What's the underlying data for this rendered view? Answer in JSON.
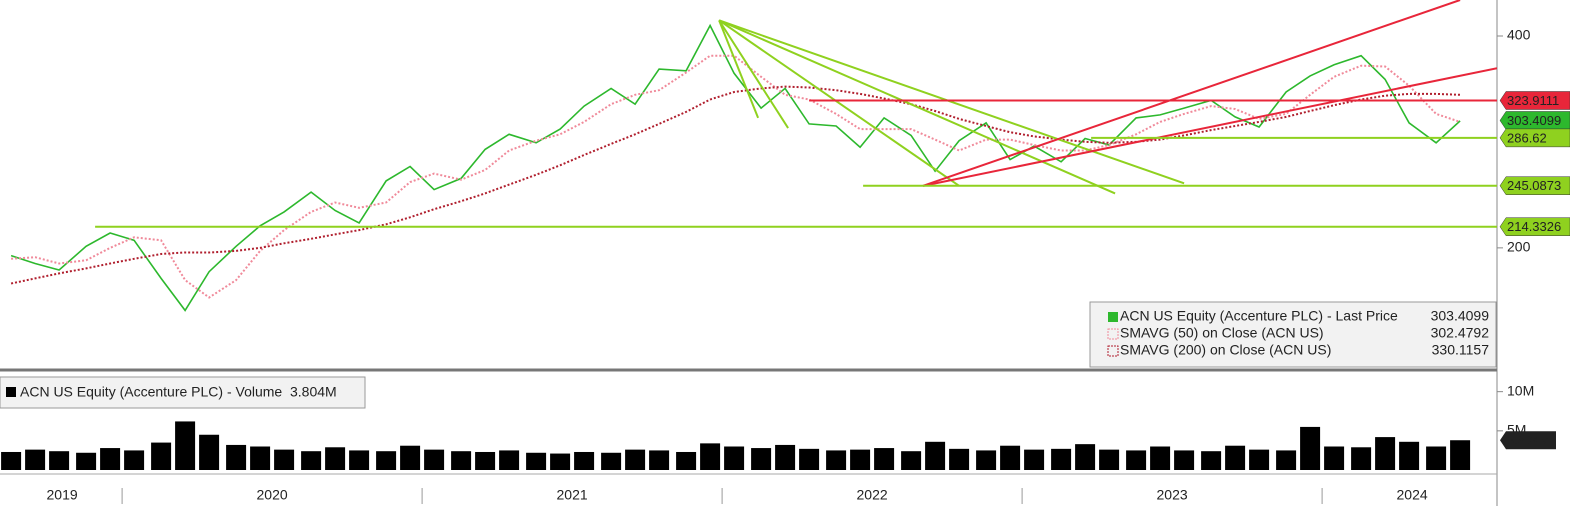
{
  "chart_data": [
    {
      "type": "line",
      "log_scale": true,
      "xlim": [
        2019.593,
        2024.583
      ],
      "ylim": [
        135,
        450
      ],
      "yticks": [
        200,
        400
      ],
      "x": [
        2019.63,
        2019.71,
        2019.79,
        2019.88,
        2019.96,
        2020.04,
        2020.13,
        2020.21,
        2020.29,
        2020.38,
        2020.46,
        2020.54,
        2020.63,
        2020.71,
        2020.79,
        2020.88,
        2020.96,
        2021.04,
        2021.13,
        2021.21,
        2021.29,
        2021.38,
        2021.46,
        2021.54,
        2021.63,
        2021.71,
        2021.79,
        2021.88,
        2021.96,
        2022.04,
        2022.13,
        2022.21,
        2022.29,
        2022.38,
        2022.46,
        2022.54,
        2022.63,
        2022.71,
        2022.79,
        2022.88,
        2022.96,
        2023.04,
        2023.13,
        2023.21,
        2023.29,
        2023.38,
        2023.46,
        2023.54,
        2023.63,
        2023.71,
        2023.79,
        2023.88,
        2023.96,
        2024.04,
        2024.13,
        2024.21,
        2024.29,
        2024.38,
        2024.46
      ],
      "series": [
        {
          "name": "ACN US Equity (Accenture PLC) - Last Price",
          "color": "#2db82d",
          "style": "solid",
          "last_value": 303.4099,
          "values": [
            195,
            190,
            186,
            201,
            210,
            205,
            181,
            163,
            185,
            201,
            215,
            225,
            240,
            226,
            217,
            249,
            261,
            242,
            251,
            276,
            290,
            282,
            295,
            318,
            337,
            320,
            359,
            357,
            414,
            354,
            316,
            337,
            300,
            298,
            278,
            306,
            289,
            257,
            284,
            301,
            267,
            279,
            265,
            286,
            280,
            306,
            309,
            316,
            324,
            307,
            297,
            333,
            351,
            364,
            375,
            347,
            301,
            282,
            303
          ]
        },
        {
          "name": "SMAVG (50)  on Close (ACN US)",
          "color": "#f08a9a",
          "style": "dotted",
          "last_value": 302.4792,
          "values": [
            193,
            194,
            190,
            192,
            200,
            207,
            205,
            180,
            170,
            180,
            198,
            212,
            225,
            232,
            228,
            232,
            248,
            255,
            250,
            258,
            275,
            284,
            290,
            302,
            320,
            330,
            335,
            355,
            375,
            375,
            350,
            330,
            325,
            310,
            295,
            295,
            295,
            285,
            275,
            285,
            285,
            280,
            275,
            275,
            280,
            290,
            302,
            310,
            318,
            315,
            305,
            310,
            330,
            350,
            363,
            362,
            340,
            310,
            302
          ]
        },
        {
          "name": "SMAVG (200)  on Close (ACN US)",
          "color": "#b01f2e",
          "style": "dotted",
          "last_value": 330.1157,
          "values": [
            178,
            181,
            184,
            187,
            190,
            193,
            196,
            197,
            197,
            198,
            200,
            203,
            206,
            209,
            212,
            216,
            221,
            227,
            233,
            239,
            246,
            254,
            262,
            271,
            281,
            290,
            300,
            312,
            325,
            333,
            337,
            339,
            338,
            335,
            331,
            326,
            320,
            313,
            305,
            298,
            292,
            288,
            285,
            283,
            282,
            283,
            285,
            289,
            294,
            298,
            302,
            307,
            313,
            319,
            325,
            329,
            331,
            331,
            330
          ]
        }
      ],
      "levels": [
        {
          "value": 323.9111,
          "color": "#e8263a",
          "x": [
            2022.29,
            2024.583
          ]
        },
        {
          "value": 303.4099,
          "color": "#2db82d"
        },
        {
          "value": 286.62,
          "color": "#8fd11f",
          "x": [
            2023.23,
            2024.583
          ]
        },
        {
          "value": 245.0873,
          "color": "#8fd11f",
          "x": [
            2022.47,
            2024.583
          ]
        },
        {
          "value": 214.3326,
          "color": "#8fd11f",
          "x": [
            2019.91,
            2024.583
          ]
        }
      ],
      "trendlines": [
        {
          "color": "#8fd11f",
          "x": [
            2021.99,
            2022.12
          ],
          "y": [
            421,
            306
          ]
        },
        {
          "color": "#8fd11f",
          "x": [
            2021.99,
            2022.22
          ],
          "y": [
            421,
            296
          ]
        },
        {
          "color": "#8fd11f",
          "x": [
            2021.99,
            2022.79
          ],
          "y": [
            421,
            245
          ]
        },
        {
          "color": "#8fd11f",
          "x": [
            2021.99,
            2023.31
          ],
          "y": [
            421,
            239
          ]
        },
        {
          "color": "#8fd11f",
          "x": [
            2021.99,
            2023.54
          ],
          "y": [
            421,
            247
          ]
        },
        {
          "color": "#e8263a",
          "x": [
            2022.67,
            2024.46
          ],
          "y": [
            245,
            450
          ]
        },
        {
          "color": "#e8263a",
          "x": [
            2022.67,
            2024.583
          ],
          "y": [
            245,
            360
          ]
        }
      ]
    },
    {
      "type": "bar",
      "xlim": [
        2019.593,
        2024.583
      ],
      "ylim": [
        0,
        12
      ],
      "yticks": [
        {
          "value": 5,
          "label": "5M"
        },
        {
          "value": 10,
          "label": "10M"
        }
      ],
      "xticks": [
        {
          "value": 2019.8,
          "label": "2019"
        },
        {
          "value": 2020.5,
          "label": "2020"
        },
        {
          "value": 2021.5,
          "label": "2021"
        },
        {
          "value": 2022.5,
          "label": "2022"
        },
        {
          "value": 2023.5,
          "label": "2023"
        },
        {
          "value": 2024.3,
          "label": "2024"
        }
      ],
      "x_separators": [
        2020,
        2021,
        2022,
        2023,
        2024
      ],
      "x": [
        2019.63,
        2019.71,
        2019.79,
        2019.88,
        2019.96,
        2020.04,
        2020.13,
        2020.21,
        2020.29,
        2020.38,
        2020.46,
        2020.54,
        2020.63,
        2020.71,
        2020.79,
        2020.88,
        2020.96,
        2021.04,
        2021.13,
        2021.21,
        2021.29,
        2021.38,
        2021.46,
        2021.54,
        2021.63,
        2021.71,
        2021.79,
        2021.88,
        2021.96,
        2022.04,
        2022.13,
        2022.21,
        2022.29,
        2022.38,
        2022.46,
        2022.54,
        2022.63,
        2022.71,
        2022.79,
        2022.88,
        2022.96,
        2023.04,
        2023.13,
        2023.21,
        2023.29,
        2023.38,
        2023.46,
        2023.54,
        2023.63,
        2023.71,
        2023.79,
        2023.88,
        2023.96,
        2024.04,
        2024.13,
        2024.21,
        2024.29,
        2024.38,
        2024.46
      ],
      "series": [
        {
          "name": "ACN US Equity (Accenture PLC) - Volume",
          "color": "#000000",
          "last_value": 3.804,
          "last_value_label": "3.804M",
          "values": [
            2.3,
            2.6,
            2.4,
            2.2,
            2.8,
            2.5,
            3.5,
            6.2,
            4.5,
            3.2,
            3.0,
            2.6,
            2.4,
            2.9,
            2.5,
            2.4,
            3.1,
            2.6,
            2.4,
            2.3,
            2.5,
            2.2,
            2.1,
            2.3,
            2.2,
            2.6,
            2.5,
            2.3,
            3.4,
            3.0,
            2.8,
            3.2,
            2.7,
            2.5,
            2.6,
            2.8,
            2.4,
            3.6,
            2.7,
            2.5,
            3.1,
            2.6,
            2.7,
            3.3,
            2.6,
            2.5,
            3.0,
            2.5,
            2.4,
            3.1,
            2.6,
            2.5,
            5.5,
            3.0,
            2.9,
            4.2,
            3.6,
            3.0,
            3.8
          ]
        }
      ]
    }
  ]
}
